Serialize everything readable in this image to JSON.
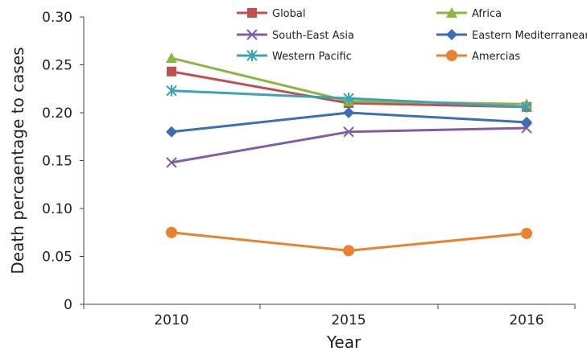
{
  "chart_data": {
    "type": "line",
    "title": "",
    "xlabel": "Year",
    "ylabel": "Death percaentage to cases",
    "categories": [
      "2010",
      "2015",
      "2016"
    ],
    "ylim": [
      0,
      0.3
    ],
    "yticks": [
      "0",
      "0.05",
      "0.10",
      "0.15",
      "0.20",
      "0.25",
      "0.30"
    ],
    "grid": false,
    "legend_position": "top",
    "series": [
      {
        "name": "Global",
        "values": [
          0.243,
          0.21,
          0.206
        ],
        "color": "#c0504d",
        "marker": "square"
      },
      {
        "name": "Africa",
        "values": [
          0.257,
          0.212,
          0.209
        ],
        "color": "#8db543",
        "marker": "triangle"
      },
      {
        "name": "South-East Asia",
        "values": [
          0.148,
          0.18,
          0.184
        ],
        "color": "#7f5fa1",
        "marker": "x"
      },
      {
        "name": "Eastern Mediterranean",
        "values": [
          0.18,
          0.2,
          0.19
        ],
        "color": "#3c6eb4",
        "marker": "diamond"
      },
      {
        "name": "Western Pacific",
        "values": [
          0.223,
          0.215,
          0.206
        ],
        "color": "#3aa3b8",
        "marker": "star"
      },
      {
        "name": "Amercias",
        "values": [
          0.075,
          0.056,
          0.074
        ],
        "color": "#e8822f",
        "marker": "circle"
      }
    ]
  }
}
